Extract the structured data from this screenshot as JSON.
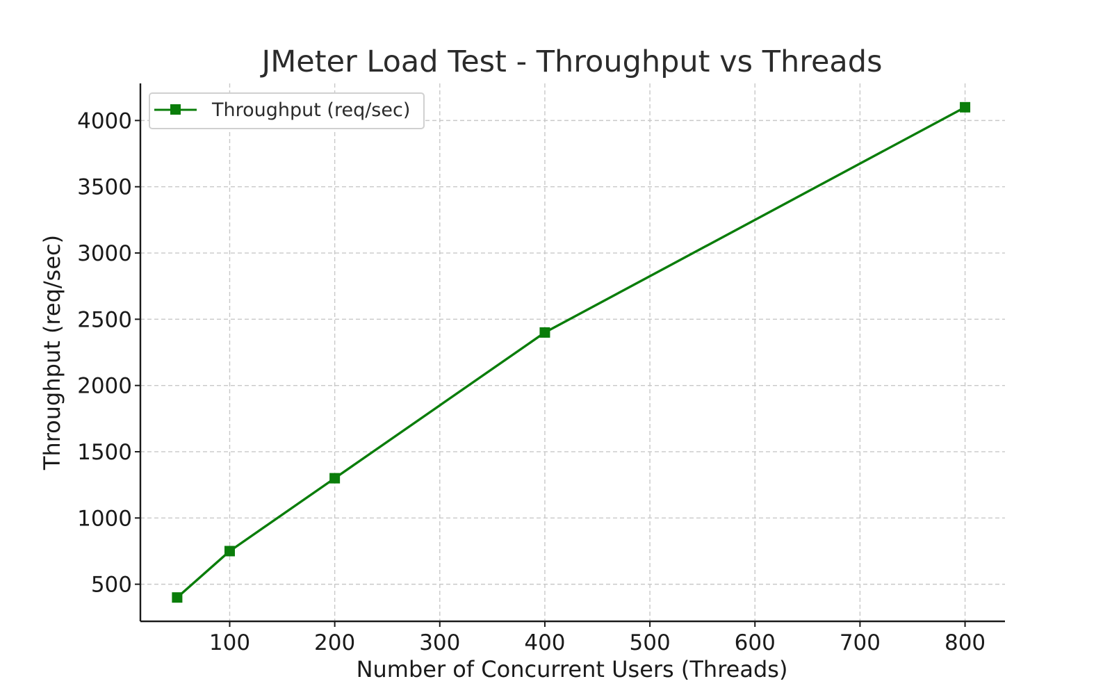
{
  "chart_data": {
    "type": "line",
    "title": "JMeter Load Test - Throughput vs Threads",
    "xlabel": "Number of Concurrent Users (Threads)",
    "ylabel": "Throughput (req/sec)",
    "xlim": [
      15,
      838
    ],
    "ylim": [
      220,
      4280
    ],
    "xticks": [
      100,
      200,
      300,
      400,
      500,
      600,
      700,
      800
    ],
    "yticks": [
      500,
      1000,
      1500,
      2000,
      2500,
      3000,
      3500,
      4000
    ],
    "grid": true,
    "legend_position": "top-left",
    "series": [
      {
        "name": "Throughput (req/sec)",
        "color": "#0a7d0a",
        "marker": "square",
        "points": [
          {
            "x": 50,
            "y": 400
          },
          {
            "x": 100,
            "y": 750
          },
          {
            "x": 200,
            "y": 1300
          },
          {
            "x": 400,
            "y": 2400
          },
          {
            "x": 800,
            "y": 4100
          }
        ]
      }
    ]
  }
}
